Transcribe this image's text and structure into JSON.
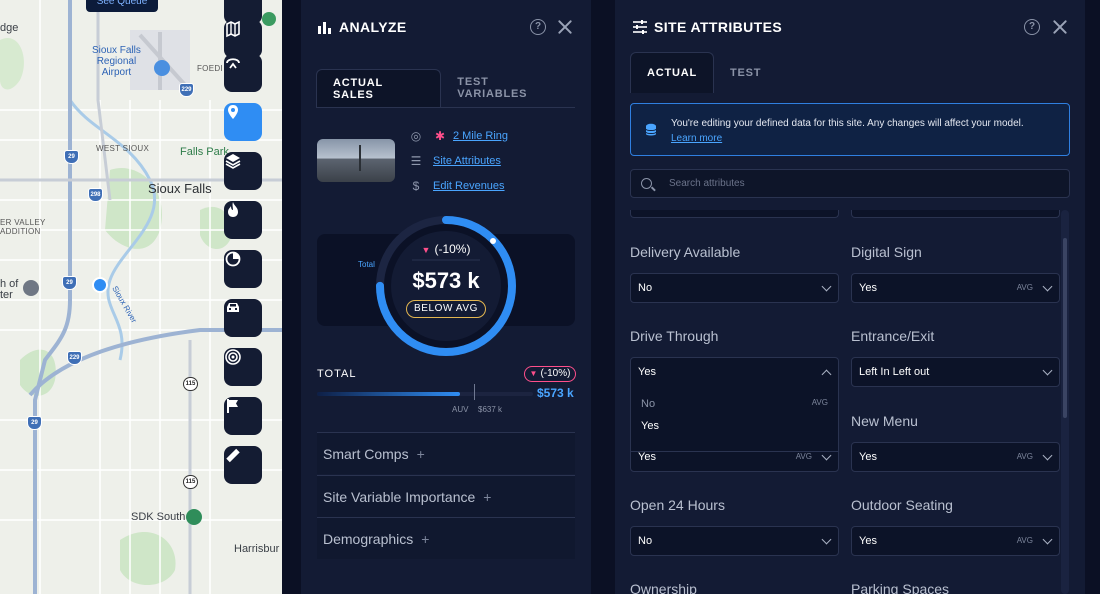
{
  "map": {
    "queue_button": "See Queue",
    "labels": {
      "edge": "dge",
      "airport": "Sioux Falls\nRegional\nAirport",
      "foedi": "FOEDI",
      "west_sioux": "WEST SIOUX",
      "falls_park": "Falls Park",
      "city": "Sioux Falls",
      "valley": "ER VALLEY",
      "addition": "ADDITION",
      "h_of": "h of",
      "ter": "ter",
      "river": "Sioux River",
      "sdk_south": "SDK South",
      "harrisburg": "Harrisbur"
    },
    "shields": [
      "29",
      "229",
      "229",
      "29",
      "115",
      "115",
      "29",
      "298"
    ]
  },
  "toolbar": {
    "icons": [
      "minus-icon",
      "map-icon",
      "route-icon",
      "location-pin-icon",
      "layers-icon",
      "fire-icon",
      "pie-chart-icon",
      "car-icon",
      "target-icon",
      "flag-icon",
      "ruler-icon"
    ],
    "active": "location-pin-icon"
  },
  "analyze": {
    "title": "ANALYZE",
    "tabs": [
      {
        "label": "ACTUAL SALES",
        "active": true
      },
      {
        "label": "TEST VARIABLES",
        "active": false
      }
    ],
    "links": {
      "ring": "2 Mile Ring",
      "site_attributes": "Site Attributes",
      "edit_revenues": "Edit Revenues"
    },
    "gauge": {
      "total_label": "Total",
      "delta": "(-10%)",
      "value": "$573 k",
      "badge": "BELOW AVG",
      "progress_fraction": 0.75
    },
    "total": {
      "label": "TOTAL",
      "delta": "(-10%)",
      "value": "$573 k",
      "auv_label": "AUV",
      "auv_value": "$637 k",
      "fill_fraction": 0.66
    },
    "sections": [
      "Smart Comps",
      "Site Variable Importance",
      "Demographics"
    ]
  },
  "site_attributes": {
    "title": "SITE ATTRIBUTES",
    "tabs": [
      {
        "label": "ACTUAL",
        "active": true
      },
      {
        "label": "TEST",
        "active": false
      }
    ],
    "notice": {
      "text": "You're editing your defined data for this site. Any changes will affect your model.",
      "link": "Learn more"
    },
    "search_placeholder": "Search attributes",
    "fields": {
      "delivery_available": {
        "label": "Delivery Available",
        "value": "No",
        "avg": ""
      },
      "digital_sign": {
        "label": "Digital Sign",
        "value": "Yes",
        "avg": "AVG"
      },
      "drive_through": {
        "label": "Drive Through",
        "value": "Yes",
        "avg": ""
      },
      "entrance_exit": {
        "label": "Entrance/Exit",
        "value": "Left In Left out",
        "avg": ""
      },
      "hidden_field": {
        "label": "",
        "value": "Yes",
        "avg": "AVG"
      },
      "new_menu": {
        "label": "New Menu",
        "value": "Yes",
        "avg": "AVG"
      },
      "open_24_hours": {
        "label": "Open 24 Hours",
        "value": "No",
        "avg": ""
      },
      "outdoor_seating": {
        "label": "Outdoor Seating",
        "value": "Yes",
        "avg": "AVG"
      },
      "ownership": {
        "label": "Ownership"
      },
      "parking_spaces": {
        "label": "Parking Spaces"
      }
    },
    "dropdown_options": [
      {
        "label": "No",
        "avg": "AVG"
      },
      {
        "label": "Yes",
        "avg": ""
      }
    ]
  },
  "colors": {
    "accent": "#2f8df3",
    "negative": "#ff4f8b",
    "badge": "#e3b650",
    "panel": "#131b34"
  }
}
